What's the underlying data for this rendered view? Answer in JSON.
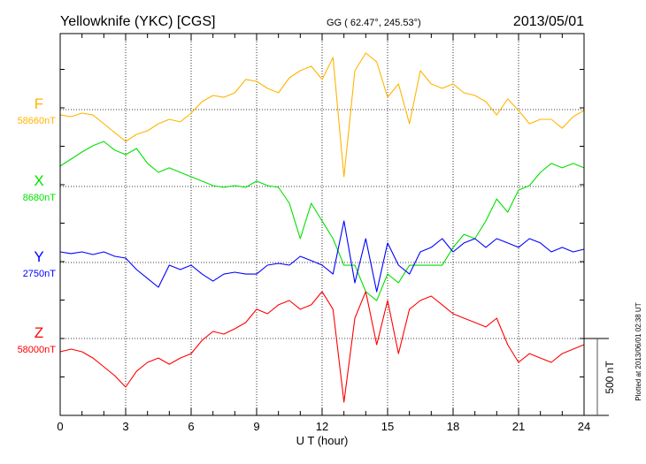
{
  "header": {
    "station": "Yellowknife (YKC)  [CGS]",
    "coords": "GG ( 62.47°, 245.53°)",
    "date": "2013/05/01"
  },
  "footer": {
    "scale_label": "500 nT",
    "plotted_at": "Plotted at 2013/06/01  02:38 UT"
  },
  "chart_data": {
    "type": "line",
    "title": "Yellowknife (YKC)  [CGS]",
    "xlabel": "U T (hour)",
    "xlim": [
      0,
      24
    ],
    "xticks": [
      "0",
      "3",
      "6",
      "9",
      "12",
      "15",
      "18",
      "21",
      "24"
    ],
    "scale_nT": 500,
    "grid": true,
    "x": [
      0,
      0.5,
      1,
      1.5,
      2,
      2.5,
      3,
      3.5,
      4,
      4.5,
      5,
      5.5,
      6,
      6.5,
      7,
      7.5,
      8,
      8.5,
      9,
      9.5,
      10,
      10.5,
      11,
      11.5,
      12,
      12.5,
      13,
      13.5,
      14,
      14.5,
      15,
      15.5,
      16,
      16.5,
      17,
      17.5,
      18,
      18.5,
      19,
      19.5,
      20,
      20.5,
      21,
      21.5,
      22,
      22.5,
      23,
      23.5,
      24
    ],
    "series": [
      {
        "name": "F",
        "baseline_label": "58660nT",
        "baseline": 58660,
        "color": "#ffb400",
        "offsets_nT": [
          -35,
          -46,
          -23,
          -35,
          -92,
          -150,
          -207,
          -161,
          -138,
          -92,
          -63,
          -80,
          -23,
          52,
          92,
          80,
          109,
          196,
          184,
          138,
          109,
          207,
          253,
          282,
          196,
          339,
          -437,
          253,
          368,
          310,
          80,
          167,
          -92,
          253,
          167,
          138,
          167,
          109,
          92,
          52,
          -35,
          69,
          -6,
          -92,
          -63,
          -63,
          -121,
          -46,
          -6
        ]
      },
      {
        "name": "X",
        "baseline_label": "8680nT",
        "baseline": 8680,
        "color": "#00e000",
        "offsets_nT": [
          132,
          178,
          224,
          265,
          293,
          236,
          207,
          247,
          150,
          92,
          121,
          92,
          63,
          35,
          6,
          -6,
          6,
          -6,
          35,
          6,
          -6,
          -109,
          -339,
          -109,
          -224,
          -339,
          -512,
          -512,
          -684,
          -742,
          -569,
          -627,
          -512,
          -512,
          -512,
          -512,
          -397,
          -311,
          -339,
          -224,
          -81,
          -167,
          -23,
          6,
          92,
          150,
          121,
          150,
          121
        ]
      },
      {
        "name": "Y",
        "baseline_label": "2750nT",
        "baseline": 2750,
        "color": "#0000ff",
        "offsets_nT": [
          69,
          58,
          69,
          52,
          69,
          40,
          29,
          -46,
          -104,
          -161,
          -17,
          -46,
          -17,
          -75,
          -121,
          -75,
          -63,
          -75,
          -75,
          -17,
          -6,
          -17,
          40,
          12,
          -17,
          -75,
          270,
          -132,
          155,
          -190,
          127,
          -17,
          -75,
          69,
          98,
          155,
          69,
          127,
          155,
          98,
          155,
          127,
          98,
          155,
          127,
          69,
          98,
          69,
          86
        ]
      },
      {
        "name": "Z",
        "baseline_label": "58000nT",
        "baseline": 58000,
        "color": "#ff0000",
        "offsets_nT": [
          -86,
          -69,
          -86,
          -127,
          -184,
          -242,
          -316,
          -213,
          -155,
          -127,
          -167,
          -127,
          -98,
          -12,
          46,
          29,
          63,
          104,
          190,
          161,
          219,
          247,
          190,
          219,
          305,
          190,
          -414,
          132,
          305,
          -40,
          247,
          -98,
          190,
          247,
          276,
          219,
          161,
          132,
          104,
          75,
          132,
          -40,
          -155,
          -98,
          -127,
          -155,
          -98,
          -69,
          -40
        ]
      }
    ]
  }
}
